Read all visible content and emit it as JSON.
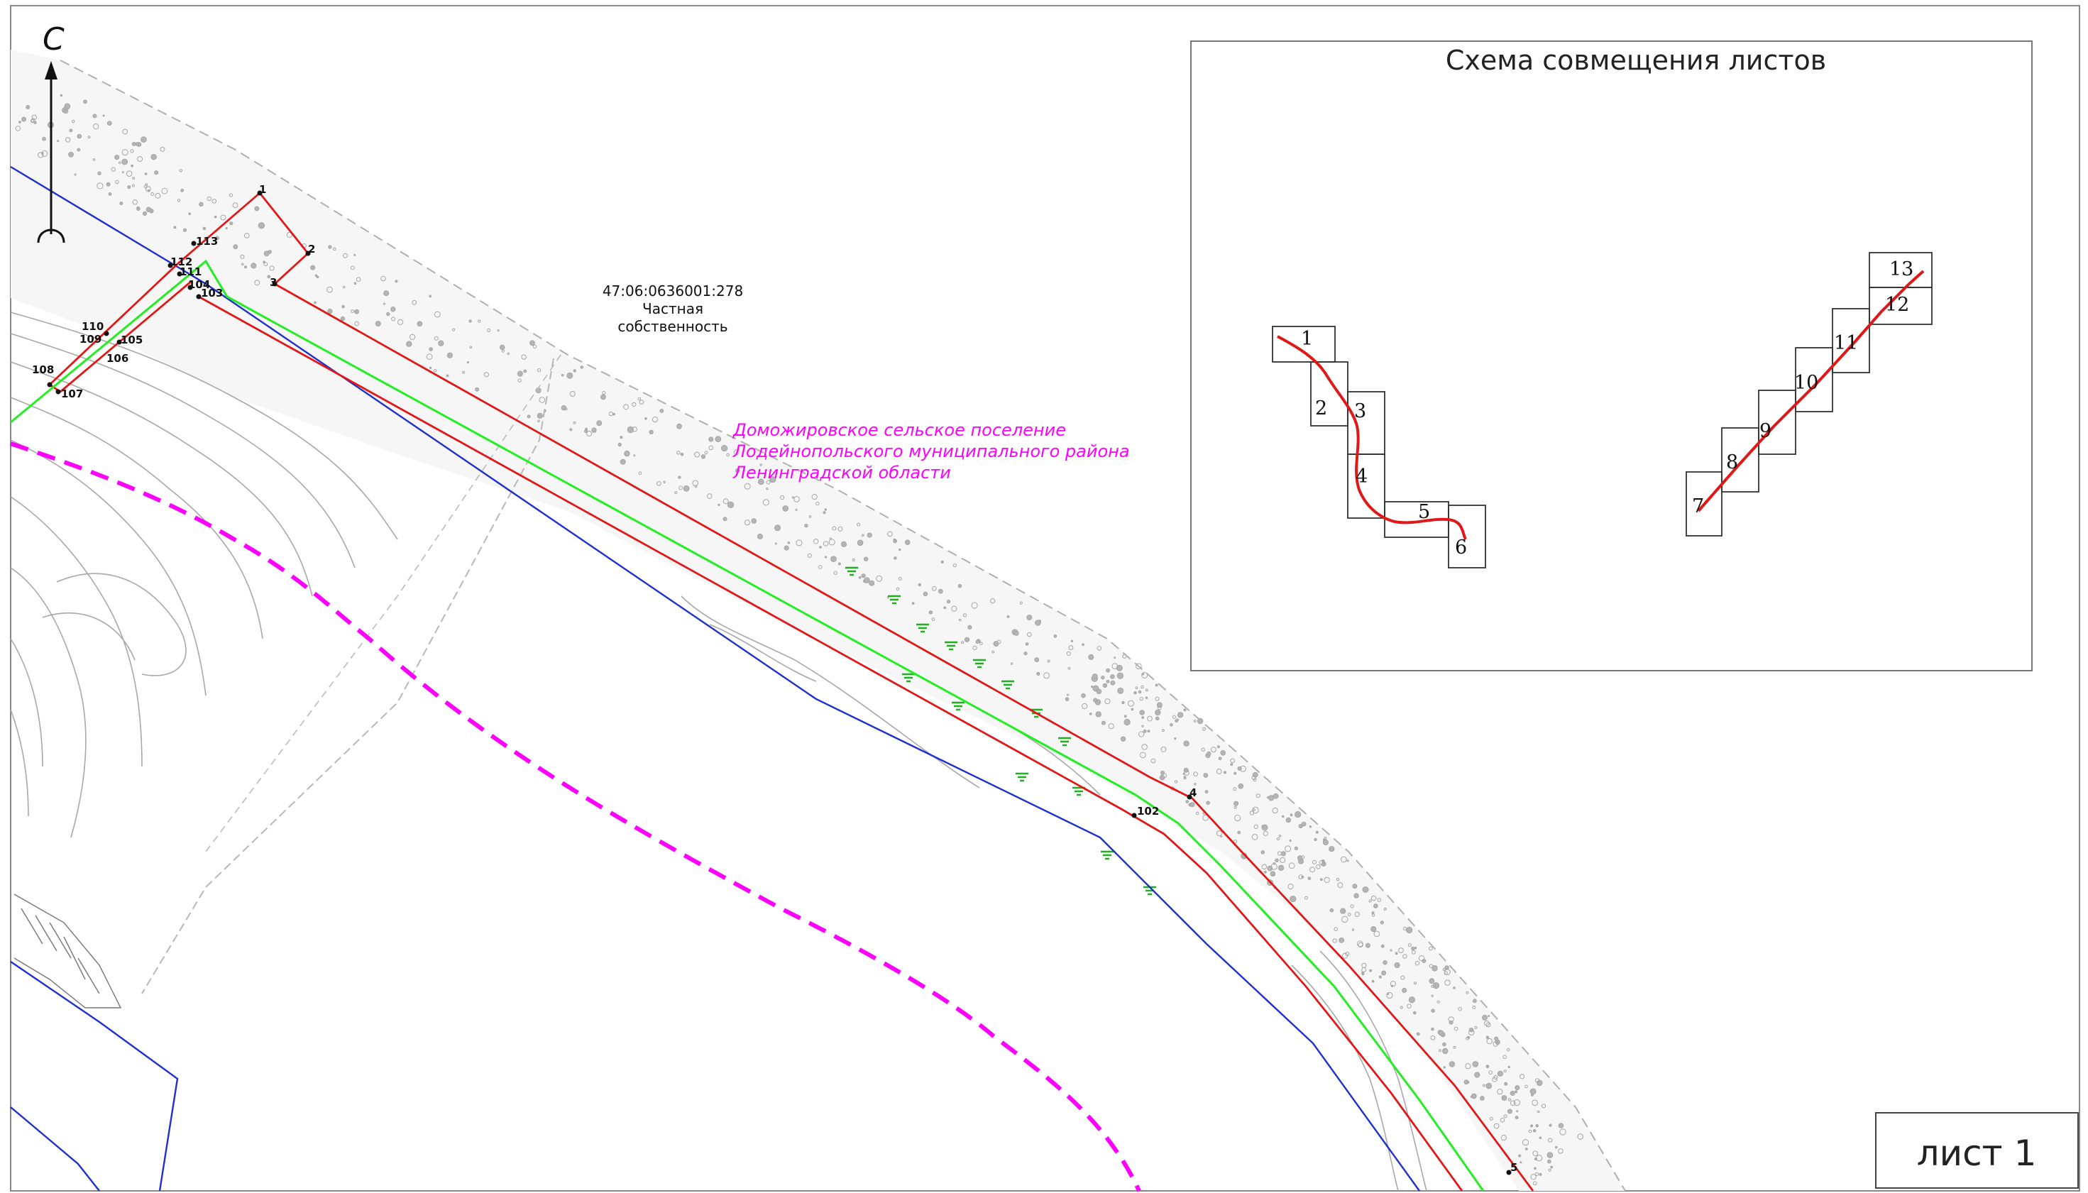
{
  "north_label": "С",
  "parcel": {
    "cadastral_number": "47:06:0636001:278",
    "ownership_line1": "Частная",
    "ownership_line2": "собственность"
  },
  "settlement": {
    "line1": "Доможировское сельское поселение",
    "line2": "Лодейнопольского муниципального района",
    "line3": "Ленинградской области"
  },
  "point_labels": [
    "1",
    "2",
    "3",
    "113",
    "112",
    "111",
    "104",
    "103",
    "110",
    "109",
    "105",
    "106",
    "108",
    "107",
    "102",
    "4",
    "5"
  ],
  "scheme": {
    "title": "Схема совмещения листов",
    "sheet_numbers": [
      "1",
      "2",
      "3",
      "4",
      "5",
      "6",
      "7",
      "8",
      "9",
      "10",
      "11",
      "12",
      "13"
    ]
  },
  "sheet_label": "лист 1",
  "colors": {
    "route_red": "#e01818",
    "route_green": "#22ee22",
    "border_blue": "#1f2fd0",
    "settlement_magenta": "#ff00ff",
    "terrain_gray": "#9a9a9a"
  }
}
